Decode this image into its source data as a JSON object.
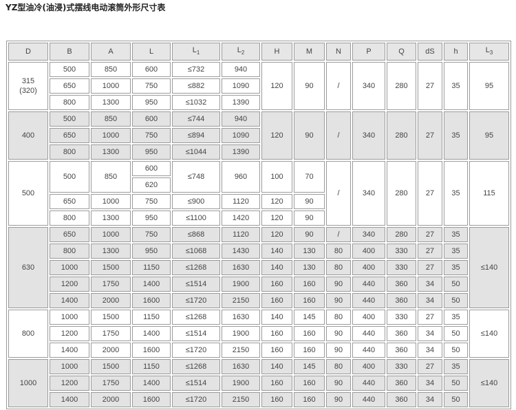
{
  "title": "YZ型油冷(油浸)式摆线电动滚筒外形尺寸表",
  "table": {
    "headers": [
      [
        "D"
      ],
      [
        "B"
      ],
      [
        "A"
      ],
      [
        "L"
      ],
      [
        "L",
        "1"
      ],
      [
        "L",
        "2"
      ],
      [
        "H"
      ],
      [
        "M"
      ],
      [
        "N"
      ],
      [
        "P"
      ],
      [
        "Q"
      ],
      [
        "dS"
      ],
      [
        "h"
      ],
      [
        "L",
        "3"
      ]
    ],
    "rows": [
      [
        "315\n(320)",
        "500",
        "850",
        "600",
        "≤732",
        "940",
        "120",
        "90",
        "/",
        "340",
        "280",
        "27",
        "35",
        "95"
      ],
      [
        "650",
        "1000",
        "750",
        "≤882",
        "1090"
      ],
      [
        "800",
        "1300",
        "950",
        "≤1032",
        "1390"
      ],
      [
        "400",
        "500",
        "850",
        "600",
        "≤744",
        "940",
        "120",
        "90",
        "/",
        "340",
        "280",
        "27",
        "35",
        "95"
      ],
      [
        "650",
        "1000",
        "750",
        "≤894",
        "1090"
      ],
      [
        "800",
        "1300",
        "950",
        "≤1044",
        "1390"
      ],
      [
        "500",
        "500",
        "850",
        "600",
        "≤748",
        "960",
        "100",
        "70",
        "/",
        "340",
        "280",
        "27",
        "35",
        "115"
      ],
      [
        "620"
      ],
      [
        "650",
        "1000",
        "750",
        "≤900",
        "1120",
        "120",
        "90"
      ],
      [
        "800",
        "1300",
        "950",
        "≤1100",
        "1420",
        "120",
        "90"
      ],
      [
        "630",
        "650",
        "1000",
        "750",
        "≤868",
        "1120",
        "120",
        "90",
        "/",
        "340",
        "280",
        "27",
        "35",
        "≤140"
      ],
      [
        "800",
        "1300",
        "950",
        "≤1068",
        "1430",
        "140",
        "130",
        "80",
        "400",
        "330",
        "27",
        "35"
      ],
      [
        "1000",
        "1500",
        "1150",
        "≤1268",
        "1630",
        "140",
        "130",
        "80",
        "400",
        "330",
        "27",
        "35"
      ],
      [
        "1200",
        "1750",
        "1400",
        "≤1514",
        "1900",
        "160",
        "160",
        "90",
        "440",
        "360",
        "34",
        "50"
      ],
      [
        "1400",
        "2000",
        "1600",
        "≤1720",
        "2150",
        "160",
        "160",
        "90",
        "440",
        "360",
        "34",
        "50"
      ],
      [
        "800",
        "1000",
        "1500",
        "1150",
        "≤1268",
        "1630",
        "140",
        "145",
        "80",
        "400",
        "330",
        "27",
        "35",
        "≤140"
      ],
      [
        "1200",
        "1750",
        "1400",
        "≤1514",
        "1900",
        "160",
        "160",
        "90",
        "440",
        "360",
        "34",
        "50"
      ],
      [
        "1400",
        "2000",
        "1600",
        "≤1720",
        "2150",
        "160",
        "160",
        "90",
        "440",
        "360",
        "34",
        "50"
      ],
      [
        "1000",
        "1000",
        "1500",
        "1150",
        "≤1268",
        "1630",
        "140",
        "145",
        "80",
        "400",
        "330",
        "27",
        "35",
        "≤140"
      ],
      [
        "1200",
        "1750",
        "1400",
        "≤1514",
        "1900",
        "160",
        "160",
        "90",
        "440",
        "360",
        "34",
        "50"
      ],
      [
        "1400",
        "2000",
        "1600",
        "≤1720",
        "2150",
        "160",
        "160",
        "90",
        "440",
        "360",
        "34",
        "50"
      ]
    ]
  }
}
